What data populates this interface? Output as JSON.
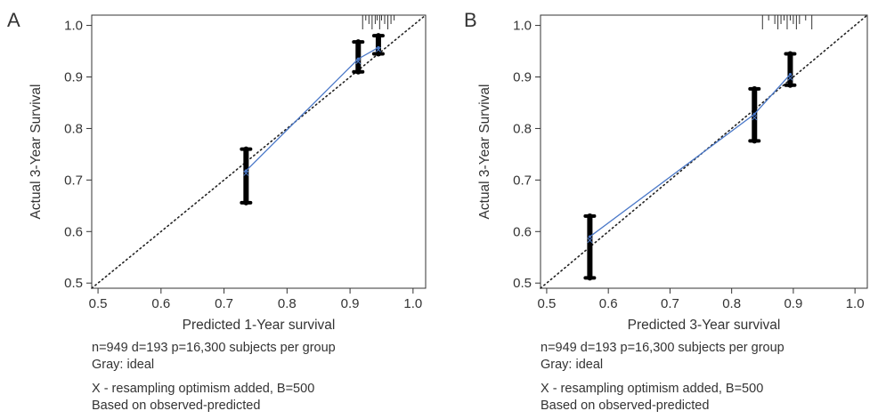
{
  "chart_data": [
    {
      "type": "calibration",
      "panel_label": "A",
      "xlabel": "Predicted 1-Year survival",
      "ylabel": "Actual 3-Year Survival",
      "xlim": [
        0.49,
        1.02
      ],
      "ylim": [
        0.49,
        1.02
      ],
      "x_ticks": [
        "0.5",
        "0.6",
        "0.7",
        "0.8",
        "0.9",
        "1.0"
      ],
      "y_ticks": [
        "0.5",
        "0.6",
        "0.7",
        "0.8",
        "0.9",
        "1.0"
      ],
      "ideal_line": {
        "from": [
          0.49,
          0.49
        ],
        "to": [
          1.02,
          1.02
        ]
      },
      "calibration_points": [
        {
          "x": 0.735,
          "y": 0.718,
          "ci": [
            0.656,
            0.76
          ]
        },
        {
          "x": 0.913,
          "y": 0.935,
          "ci": [
            0.91,
            0.968
          ]
        },
        {
          "x": 0.945,
          "y": 0.957,
          "ci": [
            0.945,
            0.98
          ]
        }
      ],
      "corrected_points": [
        {
          "x": 0.735,
          "y": 0.713
        },
        {
          "x": 0.913,
          "y": 0.93
        },
        {
          "x": 0.945,
          "y": 0.953
        }
      ],
      "rug": [
        0.92,
        0.925,
        0.93,
        0.935,
        0.94,
        0.943,
        0.947,
        0.95,
        0.955,
        0.96,
        0.965,
        0.97
      ],
      "caption": [
        "n=949 d=193 p=16,300 subjects per group",
        "Gray: ideal",
        "X - resampling optimism added, B=500",
        "Based on observed-predicted"
      ]
    },
    {
      "type": "calibration",
      "panel_label": "B",
      "xlabel": "Predicted 3-Year survival",
      "ylabel": "Actual 3-Year Survival",
      "xlim": [
        0.49,
        1.02
      ],
      "ylim": [
        0.49,
        1.02
      ],
      "x_ticks": [
        "0.5",
        "0.6",
        "0.7",
        "0.8",
        "0.9",
        "1.0"
      ],
      "y_ticks": [
        "0.5",
        "0.6",
        "0.7",
        "0.8",
        "0.9",
        "1.0"
      ],
      "ideal_line": {
        "from": [
          0.49,
          0.49
        ],
        "to": [
          1.02,
          1.02
        ]
      },
      "calibration_points": [
        {
          "x": 0.57,
          "y": 0.59,
          "ci": [
            0.51,
            0.63
          ]
        },
        {
          "x": 0.837,
          "y": 0.828,
          "ci": [
            0.776,
            0.877
          ]
        },
        {
          "x": 0.895,
          "y": 0.905,
          "ci": [
            0.884,
            0.945
          ]
        }
      ],
      "corrected_points": [
        {
          "x": 0.57,
          "y": 0.583
        },
        {
          "x": 0.837,
          "y": 0.821
        },
        {
          "x": 0.895,
          "y": 0.898
        }
      ],
      "rug": [
        0.85,
        0.86,
        0.87,
        0.875,
        0.88,
        0.885,
        0.89,
        0.895,
        0.9,
        0.905,
        0.91,
        0.92,
        0.93
      ],
      "caption": [
        "n=949 d=193 p=16,300 subjects per group",
        "Gray: ideal",
        "X - resampling optimism added, B=500",
        "Based on observed-predicted"
      ]
    }
  ]
}
